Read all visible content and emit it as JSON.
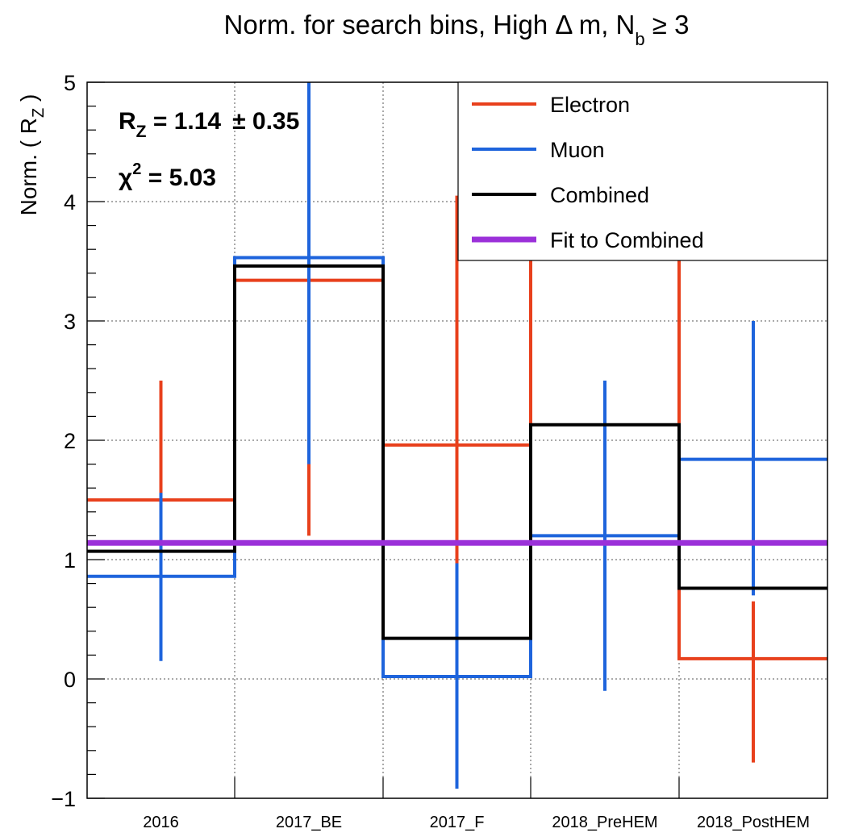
{
  "chart_data": {
    "type": "line",
    "title": {
      "main": "Norm. for search bins, High Δ m, N",
      "sub": "b",
      "tail": " ≥ 3"
    },
    "ylabel": {
      "main": "Norm. ( R",
      "sub": "Z",
      "tail": " )"
    },
    "xlabel": "",
    "ylim": [
      -1,
      5
    ],
    "yticks": [
      "−1",
      "0",
      "1",
      "2",
      "3",
      "4",
      "5"
    ],
    "categories": [
      "2016",
      "2017_BE",
      "2017_F",
      "2018_PreHEM",
      "2018_PostHEM"
    ],
    "grid": true,
    "legend_position": "top-right",
    "series": [
      {
        "name": "Electron",
        "color": "#e8401c",
        "values": [
          1.5,
          3.34,
          1.96,
          3.55,
          0.17
        ],
        "err_low": [
          1.15,
          1.2,
          0.95,
          3.55,
          -0.7
        ],
        "err_high": [
          2.5,
          5.0,
          4.05,
          5.0,
          0.65
        ]
      },
      {
        "name": "Muon",
        "color": "#1e64dc",
        "values": [
          0.86,
          3.53,
          0.02,
          1.2,
          1.84
        ],
        "err_low": [
          0.15,
          1.8,
          -0.92,
          -0.1,
          0.7
        ],
        "err_high": [
          1.56,
          5.0,
          0.97,
          2.5,
          3.0
        ]
      },
      {
        "name": "Combined",
        "color": "#000000",
        "values": [
          1.07,
          3.46,
          0.34,
          2.13,
          0.76
        ]
      }
    ],
    "fit": {
      "name": "Fit to Combined",
      "color": "#9b30d9",
      "value": 1.14
    },
    "annotations": {
      "rz": {
        "main": "R",
        "sub": "Z",
        "value": " = 1.14",
        "err": "± 0.35"
      },
      "chi2": {
        "main": "χ",
        "sup": "2",
        "value": " = 5.03"
      }
    }
  }
}
